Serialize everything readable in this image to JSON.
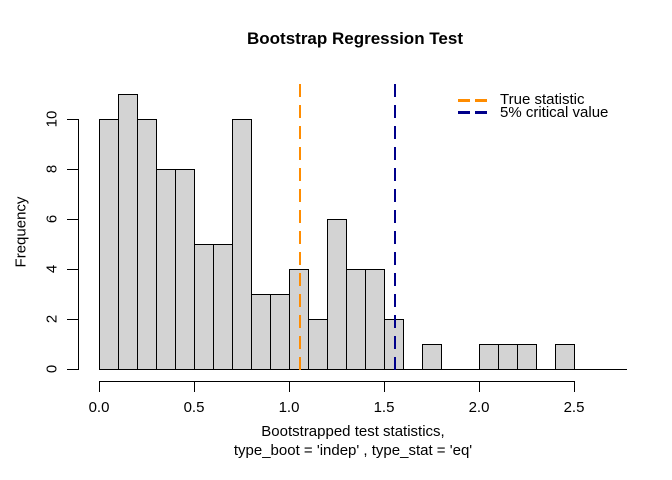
{
  "chart_data": {
    "type": "bar",
    "subtype": "histogram",
    "title": "Bootstrap Regression Test",
    "xlabel_line1": "Bootstrapped test statistics,",
    "xlabel_line2": "type_boot = 'indep' , type_stat = 'eq'",
    "ylabel": "Frequency",
    "bin_start": 0.0,
    "bin_width": 0.1,
    "counts": [
      10,
      11,
      10,
      8,
      8,
      5,
      5,
      10,
      3,
      3,
      4,
      2,
      6,
      4,
      4,
      2,
      0,
      1,
      0,
      0,
      1,
      1,
      1,
      0,
      1
    ],
    "xlim": [
      0.0,
      2.5
    ],
    "ylim": [
      0,
      11
    ],
    "grid": false,
    "x_ticks": [
      {
        "value": 0.0,
        "label": "0.0"
      },
      {
        "value": 0.5,
        "label": "0.5"
      },
      {
        "value": 1.0,
        "label": "1.0"
      },
      {
        "value": 1.5,
        "label": "1.5"
      },
      {
        "value": 2.0,
        "label": "2.0"
      },
      {
        "value": 2.5,
        "label": "2.5"
      }
    ],
    "y_ticks": [
      {
        "value": 0,
        "label": "0"
      },
      {
        "value": 2,
        "label": "2"
      },
      {
        "value": 4,
        "label": "4"
      },
      {
        "value": 6,
        "label": "6"
      },
      {
        "value": 8,
        "label": "8"
      },
      {
        "value": 10,
        "label": "10"
      }
    ],
    "bar_fill": "#D3D3D3",
    "bar_border": "#000000",
    "background": "#FFFFFF",
    "axis_color": "#000000",
    "vlines": [
      {
        "name": "true-statistic",
        "value": 1.06,
        "color": "#FF8C00",
        "line_style": "dashed",
        "label": "True statistic"
      },
      {
        "name": "critical-value",
        "value": 1.56,
        "color": "#00008B",
        "line_style": "dashed",
        "label": "5% critical value"
      }
    ],
    "legend": {
      "position": "top-right",
      "box": false
    }
  }
}
